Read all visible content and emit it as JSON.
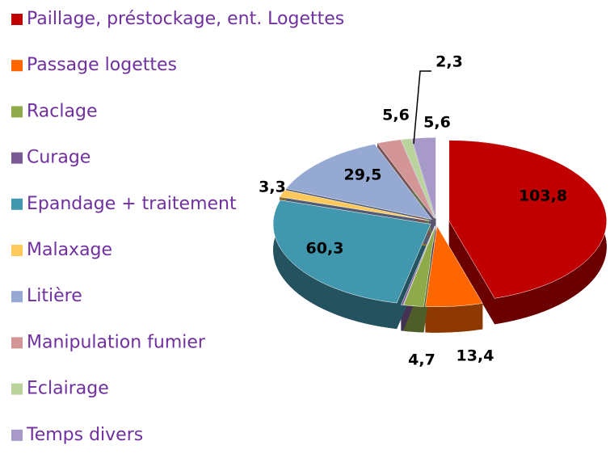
{
  "chart_data": {
    "type": "pie",
    "categories": [
      "Paillage, préstockage, ent. Logettes",
      "Passage logettes",
      "Raclage",
      "Curage",
      "Epandage + traitement",
      "Malaxage",
      "Litière",
      "Manipulation fumier",
      "Eclairage",
      "Temps divers"
    ],
    "values": [
      103.8,
      13.4,
      4.7,
      0.5,
      60.3,
      3.3,
      29.5,
      5.6,
      2.3,
      5.6
    ],
    "value_labels": [
      "103,8",
      "13,4",
      "4,7",
      null,
      "60,3",
      "3,3",
      "29,5",
      "5,6",
      "2,3",
      "5,6"
    ],
    "colors": [
      "#c00000",
      "#ff6600",
      "#8faa48",
      "#7a5a93",
      "#4197ad",
      "#ffc95b",
      "#95a9d2",
      "#d39596",
      "#b9d39a",
      "#a799c8"
    ],
    "legend": "left"
  }
}
